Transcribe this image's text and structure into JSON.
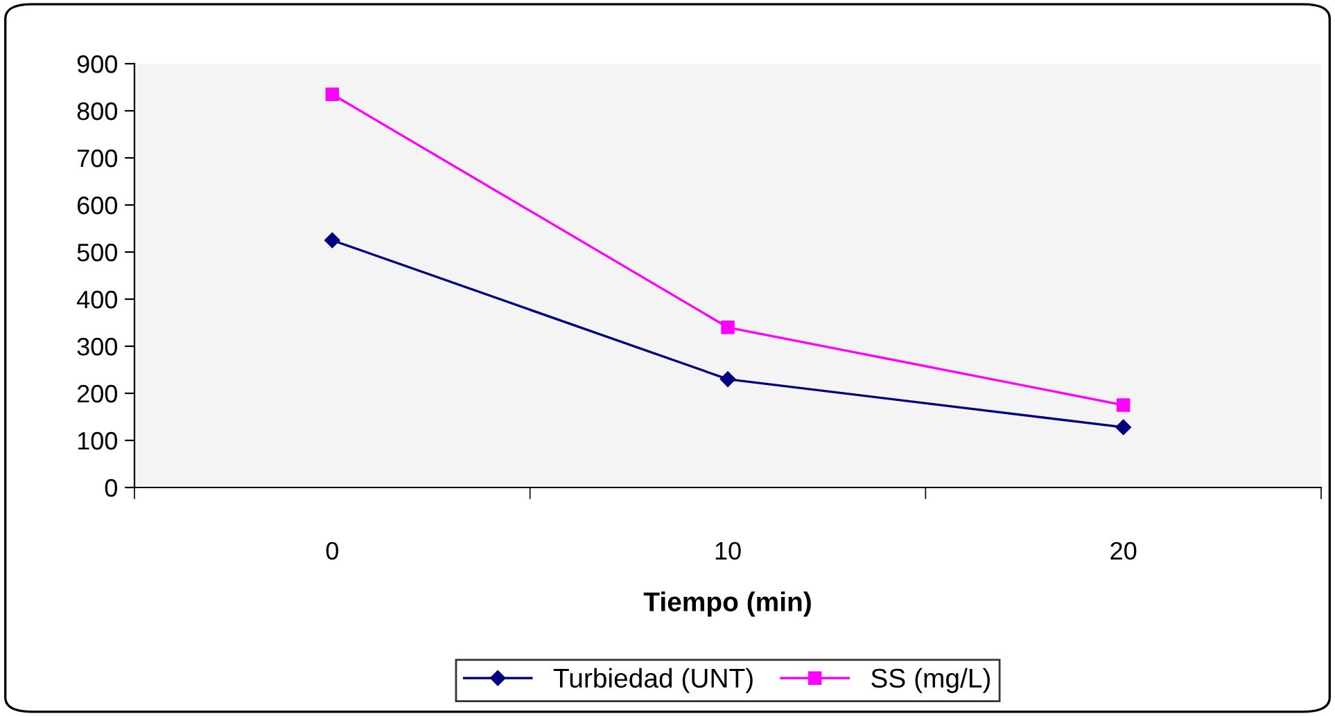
{
  "chart_data": {
    "type": "line",
    "xlabel": "Tiempo (min)",
    "categories": [
      "0",
      "10",
      "20"
    ],
    "series": [
      {
        "name": "Turbiedad (UNT)",
        "color": "#000080",
        "marker": "diamond",
        "values": [
          525,
          230,
          128
        ]
      },
      {
        "name": "SS (mg/L)",
        "color": "#ff00ff",
        "marker": "square",
        "values": [
          835,
          340,
          175
        ]
      }
    ],
    "ylim": [
      0,
      900
    ],
    "yticks": [
      0,
      100,
      200,
      300,
      400,
      500,
      600,
      700,
      800,
      900
    ],
    "grid": false,
    "legend": "bottom"
  }
}
